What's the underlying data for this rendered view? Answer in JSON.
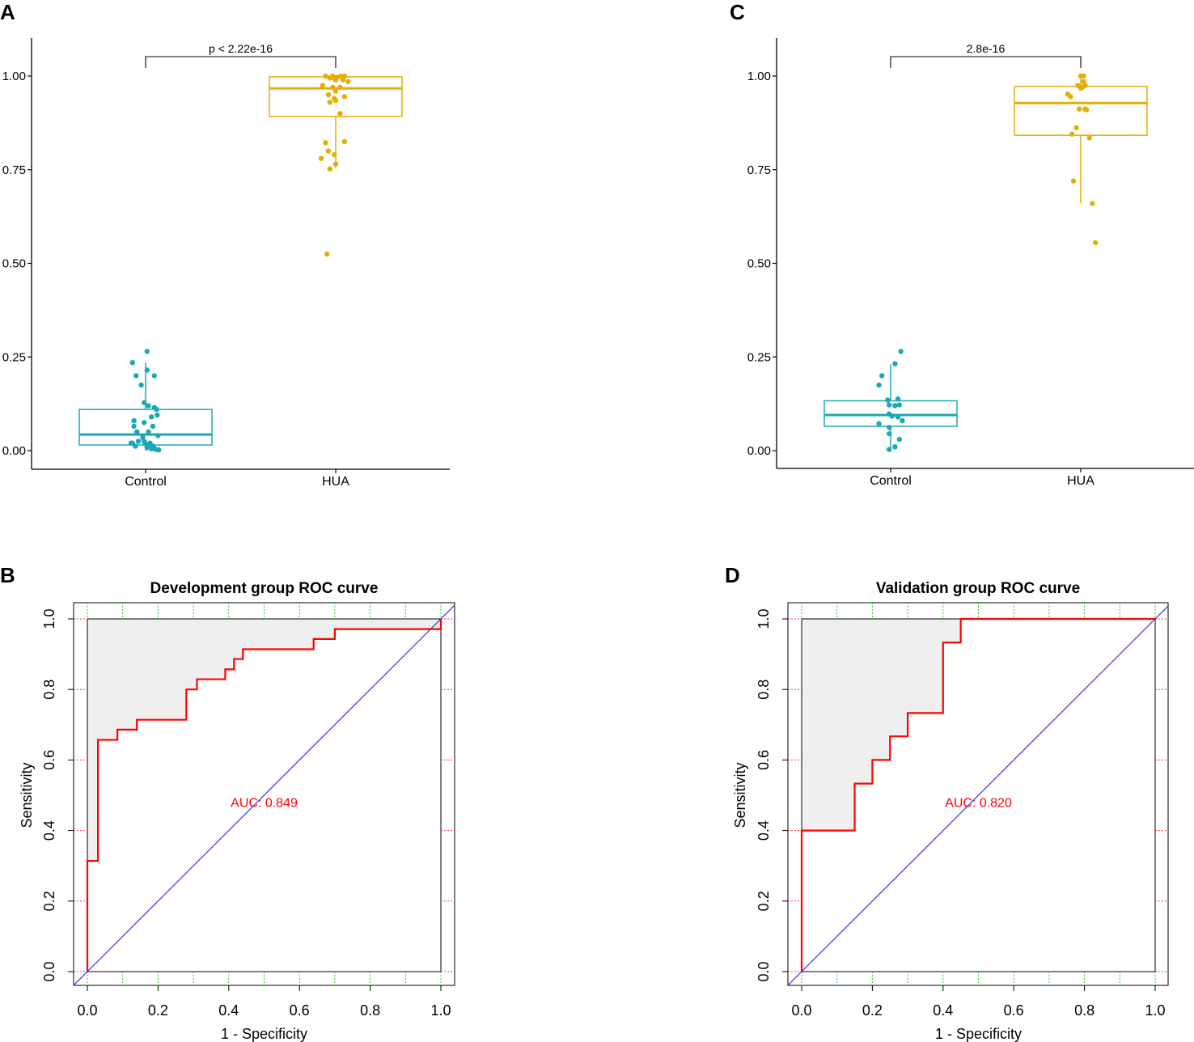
{
  "chart_data": [
    {
      "id": "A",
      "panel_label": "A",
      "type": "boxplot",
      "categories": [
        "Control",
        "HUA"
      ],
      "y_ticks": [
        "0.00",
        "0.25",
        "0.50",
        "0.75",
        "1.00"
      ],
      "ylim": [
        -0.05,
        1.08
      ],
      "comparison_label": "p < 2.22e-16",
      "colors": {
        "Control": "#1aa9b4",
        "HUA": "#e5ad06"
      },
      "boxes": [
        {
          "category": "Control",
          "lower_whisker": 0.0,
          "q1": 0.015,
          "median": 0.043,
          "q3": 0.11,
          "upper_whisker": 0.235
        },
        {
          "category": "HUA",
          "lower_whisker": 0.755,
          "q1": 0.892,
          "median": 0.967,
          "q3": 0.998,
          "upper_whisker": 1.0
        }
      ],
      "points": {
        "Control": [
          [
            -0.18,
            0.235
          ],
          [
            -0.13,
            0.2
          ],
          [
            -0.06,
            0.175
          ],
          [
            0.02,
            0.265
          ],
          [
            0.02,
            0.215
          ],
          [
            0.12,
            0.2
          ],
          [
            -0.02,
            0.128
          ],
          [
            0.04,
            0.12
          ],
          [
            0.15,
            0.11
          ],
          [
            0.12,
            0.115
          ],
          [
            0.16,
            0.095
          ],
          [
            0.08,
            0.09
          ],
          [
            -0.16,
            0.08
          ],
          [
            -0.16,
            0.065
          ],
          [
            -0.02,
            0.075
          ],
          [
            0.1,
            0.065
          ],
          [
            0.04,
            0.05
          ],
          [
            -0.12,
            0.05
          ],
          [
            0.17,
            0.04
          ],
          [
            -0.04,
            0.035
          ],
          [
            -0.2,
            0.02
          ],
          [
            -0.18,
            0.02
          ],
          [
            -0.14,
            0.012
          ],
          [
            -0.02,
            0.025
          ],
          [
            0.0,
            0.018
          ],
          [
            0.06,
            0.02
          ],
          [
            0.1,
            0.012
          ],
          [
            0.02,
            0.008
          ],
          [
            0.08,
            0.005
          ],
          [
            0.14,
            0.003
          ],
          [
            0.18,
            0.002
          ],
          [
            0.12,
            0.006
          ],
          [
            -0.1,
            0.025
          ],
          [
            0.06,
            0.01
          ]
        ],
        "HUA": [
          [
            -0.14,
            1.0
          ],
          [
            -0.04,
            1.0
          ],
          [
            -0.02,
            0.995
          ],
          [
            0.02,
            0.997
          ],
          [
            0.07,
            1.0
          ],
          [
            0.12,
            1.0
          ],
          [
            -0.08,
            0.995
          ],
          [
            0.1,
            0.99
          ],
          [
            0.17,
            0.985
          ],
          [
            0.0,
            0.99
          ],
          [
            -0.18,
            0.975
          ],
          [
            -0.04,
            0.97
          ],
          [
            0.06,
            0.97
          ],
          [
            0.0,
            0.96
          ],
          [
            -0.1,
            0.95
          ],
          [
            0.12,
            0.945
          ],
          [
            -0.02,
            0.94
          ],
          [
            0.0,
            0.935
          ],
          [
            -0.08,
            0.93
          ],
          [
            0.06,
            0.9
          ],
          [
            0.12,
            0.825
          ],
          [
            -0.14,
            0.822
          ],
          [
            -0.1,
            0.8
          ],
          [
            -0.02,
            0.79
          ],
          [
            -0.2,
            0.78
          ],
          [
            0.0,
            0.765
          ],
          [
            -0.08,
            0.752
          ],
          [
            -0.12,
            0.525
          ]
        ]
      }
    },
    {
      "id": "C",
      "panel_label": "C",
      "type": "boxplot",
      "categories": [
        "Control",
        "HUA"
      ],
      "y_ticks": [
        "0.00",
        "0.25",
        "0.50",
        "0.75",
        "1.00"
      ],
      "ylim": [
        -0.05,
        1.08
      ],
      "comparison_label": "2.8e-16",
      "colors": {
        "Control": "#1aa9b4",
        "HUA": "#e5ad06"
      },
      "boxes": [
        {
          "category": "Control",
          "lower_whisker": 0.003,
          "q1": 0.065,
          "median": 0.095,
          "q3": 0.133,
          "upper_whisker": 0.23
        },
        {
          "category": "HUA",
          "lower_whisker": 0.66,
          "q1": 0.842,
          "median": 0.928,
          "q3": 0.972,
          "upper_whisker": 1.0
        }
      ],
      "points": {
        "Control": [
          [
            -0.12,
            0.2
          ],
          [
            -0.16,
            0.175
          ],
          [
            0.06,
            0.232
          ],
          [
            0.14,
            0.265
          ],
          [
            -0.04,
            0.135
          ],
          [
            0.1,
            0.138
          ],
          [
            -0.02,
            0.122
          ],
          [
            0.12,
            0.122
          ],
          [
            0.06,
            0.12
          ],
          [
            -0.02,
            0.098
          ],
          [
            0.02,
            0.092
          ],
          [
            0.1,
            0.09
          ],
          [
            0.16,
            0.08
          ],
          [
            -0.16,
            0.072
          ],
          [
            -0.02,
            0.062
          ],
          [
            -0.02,
            0.045
          ],
          [
            0.12,
            0.03
          ],
          [
            -0.02,
            0.003
          ],
          [
            0.06,
            0.01
          ]
        ],
        "HUA": [
          [
            -0.18,
            0.952
          ],
          [
            -0.14,
            0.945
          ],
          [
            -0.12,
            0.845
          ],
          [
            -0.06,
            0.862
          ],
          [
            -0.02,
            0.912
          ],
          [
            0.0,
            0.968
          ],
          [
            0.02,
            0.97
          ],
          [
            -0.04,
            0.975
          ],
          [
            0.0,
            1.0
          ],
          [
            0.04,
            1.0
          ],
          [
            0.04,
            0.985
          ],
          [
            0.06,
            0.975
          ],
          [
            0.06,
            0.912
          ],
          [
            0.12,
            0.835
          ],
          [
            0.08,
            0.91
          ],
          [
            -0.1,
            0.72
          ],
          [
            0.16,
            0.66
          ],
          [
            0.2,
            0.555
          ]
        ]
      }
    },
    {
      "id": "B",
      "panel_label": "B",
      "type": "roc",
      "title": "Development group ROC curve",
      "xlabel": "1 - Specificity",
      "ylabel": "Sensitivity",
      "x_ticks": [
        "0.0",
        "0.2",
        "0.4",
        "0.6",
        "0.8",
        "1.0"
      ],
      "y_ticks": [
        "0.0",
        "0.2",
        "0.4",
        "0.6",
        "0.8",
        "1.0"
      ],
      "auc_label": "AUC: 0.849",
      "auc": 0.849,
      "curve": [
        [
          0,
          0
        ],
        [
          0,
          0.314
        ],
        [
          0.03,
          0.314
        ],
        [
          0.03,
          0.657
        ],
        [
          0.085,
          0.657
        ],
        [
          0.085,
          0.686
        ],
        [
          0.14,
          0.686
        ],
        [
          0.14,
          0.714
        ],
        [
          0.28,
          0.714
        ],
        [
          0.28,
          0.8
        ],
        [
          0.31,
          0.8
        ],
        [
          0.31,
          0.829
        ],
        [
          0.39,
          0.829
        ],
        [
          0.39,
          0.857
        ],
        [
          0.415,
          0.857
        ],
        [
          0.415,
          0.886
        ],
        [
          0.44,
          0.886
        ],
        [
          0.44,
          0.914
        ],
        [
          0.64,
          0.914
        ],
        [
          0.64,
          0.943
        ],
        [
          0.7,
          0.943
        ],
        [
          0.7,
          0.971
        ],
        [
          1.0,
          0.971
        ],
        [
          1.0,
          1.0
        ]
      ]
    },
    {
      "id": "D",
      "panel_label": "D",
      "type": "roc",
      "title": "Validation group ROC curve",
      "xlabel": "1 - Specificity",
      "ylabel": "Sensitivity",
      "x_ticks": [
        "0.0",
        "0.2",
        "0.4",
        "0.6",
        "0.8",
        "1.0"
      ],
      "y_ticks": [
        "0.0",
        "0.2",
        "0.4",
        "0.6",
        "0.8",
        "1.0"
      ],
      "auc_label": "AUC: 0.820",
      "auc": 0.82,
      "curve": [
        [
          0,
          0
        ],
        [
          0,
          0.4
        ],
        [
          0.15,
          0.4
        ],
        [
          0.15,
          0.533
        ],
        [
          0.2,
          0.533
        ],
        [
          0.2,
          0.6
        ],
        [
          0.25,
          0.6
        ],
        [
          0.25,
          0.667
        ],
        [
          0.3,
          0.667
        ],
        [
          0.3,
          0.733
        ],
        [
          0.4,
          0.733
        ],
        [
          0.4,
          0.933
        ],
        [
          0.45,
          0.933
        ],
        [
          0.45,
          1.0
        ],
        [
          1.0,
          1.0
        ]
      ]
    }
  ]
}
